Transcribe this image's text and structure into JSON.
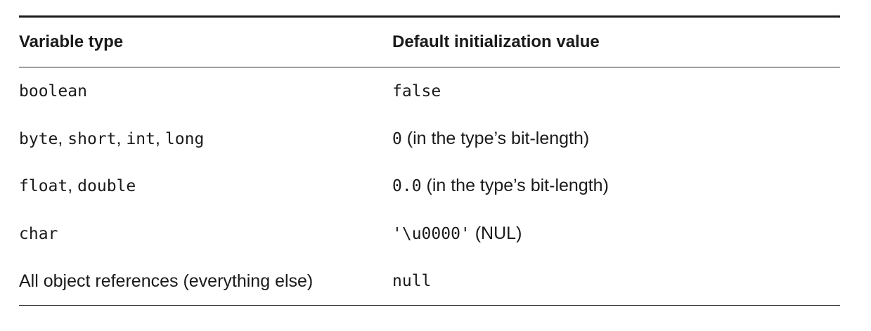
{
  "table": {
    "headers": {
      "variable_type": "Variable type",
      "default_value": "Default initialization value"
    },
    "rows": [
      {
        "type_parts": [
          {
            "text": "boolean",
            "style": "mono"
          }
        ],
        "value_parts": [
          {
            "text": "false",
            "style": "mono"
          }
        ]
      },
      {
        "type_parts": [
          {
            "text": "byte",
            "style": "mono"
          },
          {
            "text": ", ",
            "style": "sans"
          },
          {
            "text": "short",
            "style": "mono"
          },
          {
            "text": ", ",
            "style": "sans"
          },
          {
            "text": "int",
            "style": "mono"
          },
          {
            "text": ", ",
            "style": "sans"
          },
          {
            "text": "long",
            "style": "mono"
          }
        ],
        "value_parts": [
          {
            "text": "0",
            "style": "mono"
          },
          {
            "text": " (in the type’s bit-length)",
            "style": "sans"
          }
        ]
      },
      {
        "type_parts": [
          {
            "text": "float",
            "style": "mono"
          },
          {
            "text": ", ",
            "style": "sans"
          },
          {
            "text": "double",
            "style": "mono"
          }
        ],
        "value_parts": [
          {
            "text": "0.0",
            "style": "mono"
          },
          {
            "text": " (in the type’s bit-length)",
            "style": "sans"
          }
        ]
      },
      {
        "type_parts": [
          {
            "text": "char",
            "style": "mono"
          }
        ],
        "value_parts": [
          {
            "text": "'\\u0000'",
            "style": "mono"
          },
          {
            "text": " (NUL)",
            "style": "sans"
          }
        ]
      },
      {
        "type_parts": [
          {
            "text": "All object references (everything else)",
            "style": "sans"
          }
        ],
        "value_parts": [
          {
            "text": "null",
            "style": "mono"
          }
        ]
      }
    ]
  }
}
